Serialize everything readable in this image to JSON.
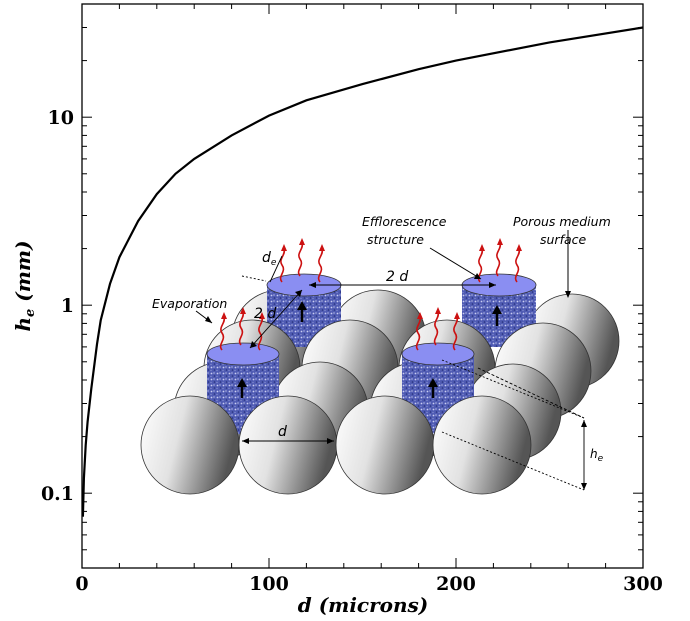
{
  "chart_data": {
    "type": "line",
    "xlabel": "d (microns)",
    "ylabel_main": "h",
    "ylabel_sub": "e",
    "ylabel_unit": "(mm)",
    "x_scale": "linear",
    "y_scale": "log",
    "xlim": [
      0,
      300
    ],
    "ylim": [
      0.04,
      40
    ],
    "x_ticks": [
      0,
      100,
      200,
      300
    ],
    "x_tick_labels": [
      "0",
      "100",
      "200",
      "300"
    ],
    "y_ticks": [
      0.1,
      1,
      10
    ],
    "y_tick_labels": [
      "0.1",
      "1",
      "10"
    ],
    "grid": false,
    "series": [
      {
        "color": "#000000",
        "x": [
          0.5,
          1,
          2,
          3,
          5,
          8,
          10,
          15,
          20,
          30,
          40,
          50,
          60,
          80,
          100,
          120,
          150,
          180,
          200,
          250,
          300
        ],
        "y": [
          0.075,
          0.12,
          0.18,
          0.24,
          0.36,
          0.62,
          0.83,
          1.3,
          1.8,
          2.8,
          3.9,
          5.0,
          6.0,
          8.0,
          10.2,
          12.3,
          15.0,
          18.0,
          20.0,
          25.0,
          30.0
        ]
      }
    ]
  },
  "inset": {
    "labels": {
      "efflorescence": [
        "Efflorescence",
        "structure"
      ],
      "porous": [
        "Porous medium",
        "surface"
      ],
      "evaporation": "Evaporation",
      "de_main": "d",
      "de_sub": "e",
      "two_d_a": "2 d",
      "two_d_b": "2 d",
      "d_label": "d",
      "he_main": "h",
      "he_sub": "e"
    },
    "colors": {
      "cylinder_top": "#8a8ef2",
      "cylinder_body": "#4f5bb3",
      "sphere_light": "#ffffff",
      "sphere_dark": "#555555",
      "vapor": "#cc1111"
    }
  }
}
